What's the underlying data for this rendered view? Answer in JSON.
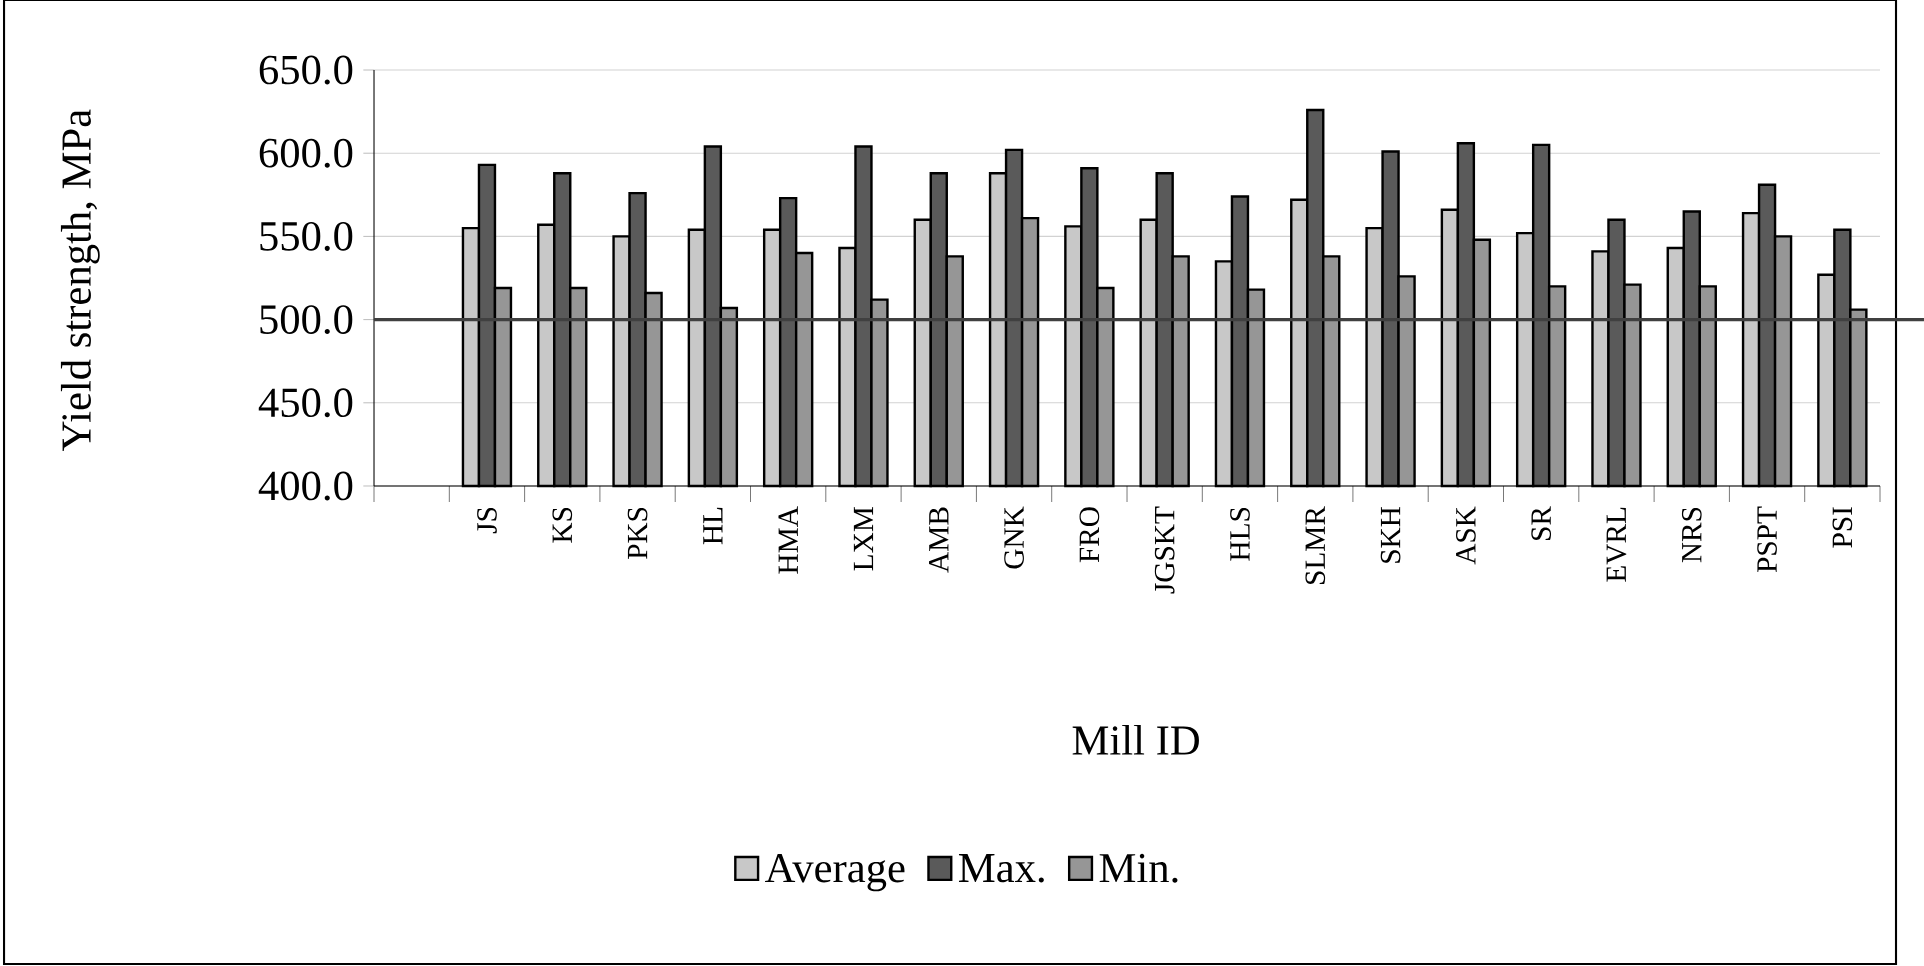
{
  "chart_data": {
    "type": "bar",
    "xlabel": "Mill ID",
    "ylabel": "Yield strength, MPa",
    "categories": [
      null,
      "JS",
      "KS",
      "PKS",
      "HL",
      "HMA",
      "LXM",
      "AMB",
      "GNK",
      "FRO",
      "JGSKT",
      "HLS",
      "SLMR",
      "SKH",
      "ASK",
      "SR",
      "EVRL",
      "NRS",
      "PSPT",
      "PSI"
    ],
    "series": [
      {
        "name": "Average",
        "color": "#c8c8c8",
        "values": [
          null,
          555,
          557,
          550,
          554,
          554,
          543,
          560,
          588,
          556,
          560,
          535,
          572,
          555,
          566,
          552,
          541,
          543,
          564,
          527
        ]
      },
      {
        "name": "Max.",
        "color": "#5a5a5a",
        "values": [
          null,
          593,
          588,
          576,
          604,
          573,
          604,
          588,
          602,
          591,
          588,
          574,
          626,
          601,
          606,
          605,
          560,
          565,
          581,
          554
        ]
      },
      {
        "name": "Min.",
        "color": "#969696",
        "values": [
          null,
          519,
          519,
          516,
          507,
          540,
          512,
          538,
          561,
          519,
          538,
          518,
          538,
          526,
          548,
          520,
          521,
          520,
          550,
          506
        ]
      }
    ],
    "ylim": [
      400,
      650
    ],
    "yticks": [
      {
        "value": 400,
        "label": "400.0"
      },
      {
        "value": 450,
        "label": "450.0"
      },
      {
        "value": 500,
        "label": "500.0"
      },
      {
        "value": 550,
        "label": "550.0"
      },
      {
        "value": 600,
        "label": "600.0"
      },
      {
        "value": 650,
        "label": "650.0"
      }
    ],
    "grid": "y",
    "ref_lines": [
      {
        "axis": "y",
        "value": 500,
        "color": "#404040"
      }
    ],
    "legend": "bottom"
  }
}
